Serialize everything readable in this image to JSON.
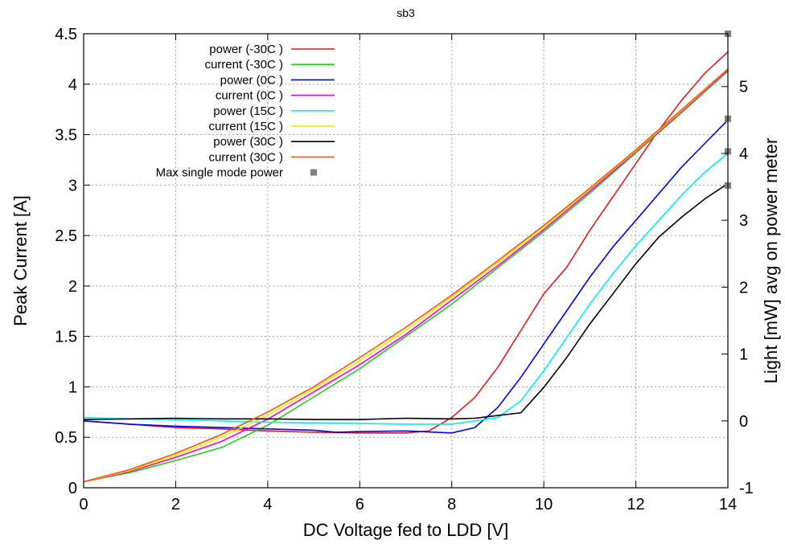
{
  "chart_data": {
    "type": "line",
    "title": "sb3",
    "xlabel": "DC Voltage fed to LDD [V]",
    "ylabel": "Peak Current [A]",
    "y2label": "Light [mW] avg on power meter",
    "xlim": [
      0,
      14
    ],
    "ylim": [
      0,
      4.5
    ],
    "y2lim": [
      -1,
      5.79
    ],
    "grid": true,
    "legend_position": "top-left",
    "x_ticks": [
      "0",
      "2",
      "4",
      "6",
      "8",
      "10",
      "12",
      "14"
    ],
    "y_ticks": [
      "0",
      "0.5",
      "1",
      "1.5",
      "2",
      "2.5",
      "3",
      "3.5",
      "4",
      "4.5"
    ],
    "y2_ticks": [
      "-1",
      "0",
      "1",
      "2",
      "3",
      "4",
      "5"
    ],
    "series": [
      {
        "name": "power (-30C )",
        "axis": "y2",
        "color": "#e41a1c",
        "x": [
          0,
          1,
          2,
          3,
          4,
          5,
          6,
          7,
          7.5,
          8,
          8.5,
          9,
          9.5,
          10,
          10.5,
          11,
          11.5,
          12,
          12.5,
          13,
          13.5,
          14
        ],
        "y": [
          0,
          -0.05,
          -0.1,
          -0.12,
          -0.15,
          -0.17,
          -0.18,
          -0.18,
          -0.15,
          0.05,
          0.35,
          0.8,
          1.35,
          1.9,
          2.3,
          2.85,
          3.35,
          3.85,
          4.35,
          4.8,
          5.2,
          5.52
        ]
      },
      {
        "name": "current (-30C )",
        "axis": "y",
        "color": "#22cc22",
        "x": [
          0,
          1,
          2,
          3,
          4,
          5,
          6,
          7,
          8,
          9,
          10,
          11,
          12,
          13,
          14
        ],
        "y": [
          0.06,
          0.15,
          0.27,
          0.4,
          0.62,
          0.9,
          1.18,
          1.5,
          1.82,
          2.18,
          2.54,
          2.92,
          3.32,
          3.72,
          4.13
        ]
      },
      {
        "name": "power (0C )",
        "axis": "y2",
        "color": "#0000ee",
        "x": [
          0,
          1,
          2,
          3,
          4,
          5,
          5.5,
          6,
          7,
          8,
          8.5,
          9,
          9.5,
          10,
          10.5,
          11,
          11.5,
          12,
          12.5,
          13,
          13.5,
          14
        ],
        "y": [
          0,
          -0.05,
          -0.08,
          -0.1,
          -0.12,
          -0.14,
          -0.17,
          -0.16,
          -0.15,
          -0.18,
          -0.1,
          0.2,
          0.65,
          1.15,
          1.65,
          2.15,
          2.6,
          3.0,
          3.4,
          3.8,
          4.15,
          4.5
        ]
      },
      {
        "name": "current (0C )",
        "axis": "y",
        "color": "#ee00ee",
        "x": [
          0,
          1,
          2,
          3,
          4,
          5,
          6,
          7,
          8,
          9,
          10,
          11,
          12,
          13,
          14
        ],
        "y": [
          0.06,
          0.16,
          0.3,
          0.46,
          0.68,
          0.95,
          1.22,
          1.52,
          1.86,
          2.2,
          2.56,
          2.94,
          3.33,
          3.73,
          4.14
        ]
      },
      {
        "name": "power (15C )",
        "axis": "y2",
        "color": "#00eeee",
        "x": [
          0,
          1,
          2,
          3,
          4,
          5,
          6,
          7,
          8,
          8.5,
          9,
          9.5,
          10,
          10.5,
          11,
          11.5,
          12,
          12.5,
          13,
          13.5,
          14
        ],
        "y": [
          0.05,
          0.03,
          0.02,
          0.0,
          -0.02,
          -0.03,
          -0.04,
          -0.05,
          -0.05,
          0.0,
          0.05,
          0.3,
          0.75,
          1.25,
          1.75,
          2.2,
          2.62,
          3.0,
          3.38,
          3.72,
          4.0
        ]
      },
      {
        "name": "current (15C )",
        "axis": "y",
        "color": "#eeee00",
        "x": [
          0,
          1,
          2,
          3,
          4,
          5,
          6,
          7,
          8,
          9,
          10,
          11,
          12,
          13,
          14
        ],
        "y": [
          0.06,
          0.17,
          0.32,
          0.5,
          0.72,
          0.98,
          1.26,
          1.56,
          1.89,
          2.23,
          2.58,
          2.96,
          3.34,
          3.74,
          4.15
        ]
      },
      {
        "name": "power (30C )",
        "axis": "y2",
        "color": "#000000",
        "x": [
          0,
          1,
          2,
          3,
          4,
          5,
          6,
          7,
          8,
          8.5,
          9,
          9.5,
          10,
          10.5,
          11,
          11.5,
          12,
          12.5,
          13,
          13.5,
          14
        ],
        "y": [
          0.02,
          0.03,
          0.04,
          0.03,
          0.03,
          0.02,
          0.02,
          0.04,
          0.03,
          0.04,
          0.08,
          0.12,
          0.5,
          0.95,
          1.45,
          1.9,
          2.35,
          2.75,
          3.05,
          3.32,
          3.55
        ]
      },
      {
        "name": "current (30C )",
        "axis": "y",
        "color": "#ff5500",
        "x": [
          0,
          1,
          2,
          3,
          4,
          5,
          6,
          7,
          8,
          9,
          10,
          11,
          12,
          13,
          14
        ],
        "y": [
          0.06,
          0.18,
          0.34,
          0.53,
          0.75,
          1.0,
          1.29,
          1.59,
          1.91,
          2.25,
          2.6,
          2.97,
          3.35,
          3.75,
          4.15
        ]
      },
      {
        "name": "Max single mode power",
        "axis": "y2",
        "color": "#808080",
        "marker": "square",
        "line": false,
        "x": [
          14,
          14,
          14,
          14
        ],
        "y": [
          5.79,
          4.52,
          4.03,
          3.52
        ]
      }
    ]
  }
}
